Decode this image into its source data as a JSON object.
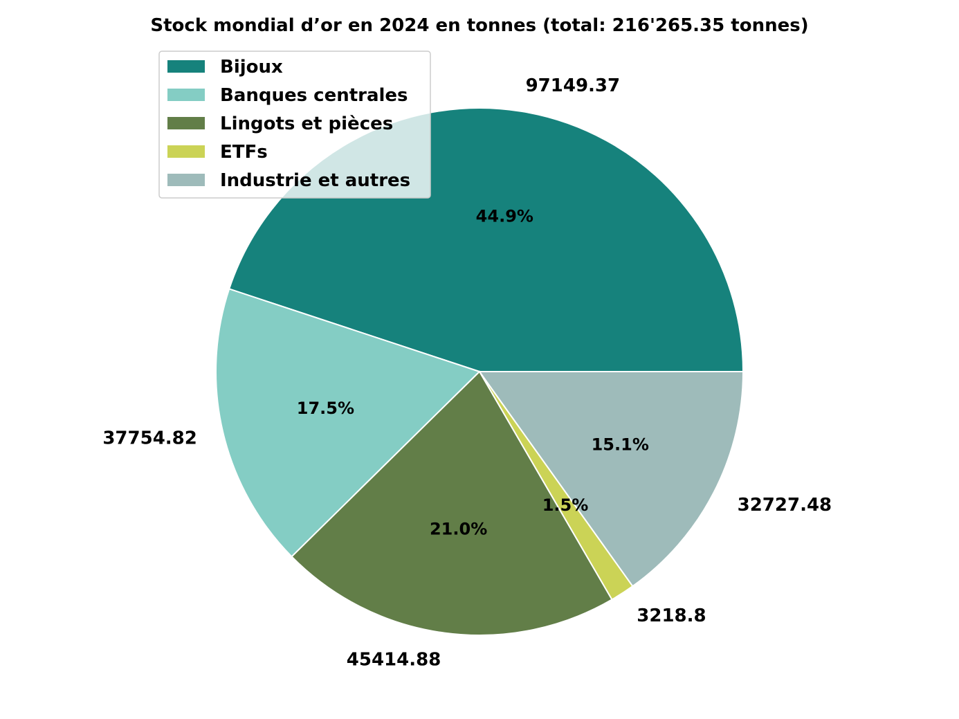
{
  "chart_data": {
    "type": "pie",
    "title": "Stock mondial d’or en 2024 en tonnes (total: 216'265.35 tonnes)",
    "start_angle_deg": 0,
    "direction": "counterclockwise",
    "legend_position": "upper-left",
    "slices": [
      {
        "label": "Bijoux",
        "value": 97149.37,
        "value_label": "97149.37",
        "pct_label": "44.9%",
        "color": "#16827c"
      },
      {
        "label": "Banques centrales",
        "value": 37754.82,
        "value_label": "37754.82",
        "pct_label": "17.5%",
        "color": "#84cdc4"
      },
      {
        "label": "Lingots et pièces",
        "value": 45414.88,
        "value_label": "45414.88",
        "pct_label": "21.0%",
        "color": "#627e48"
      },
      {
        "label": "ETFs",
        "value": 3218.8,
        "value_label": "3218.8",
        "pct_label": "1.5%",
        "color": "#cbd356"
      },
      {
        "label": "Industrie et autres",
        "value": 32727.48,
        "value_label": "32727.48",
        "pct_label": "15.1%",
        "color": "#9ebbba"
      }
    ]
  }
}
